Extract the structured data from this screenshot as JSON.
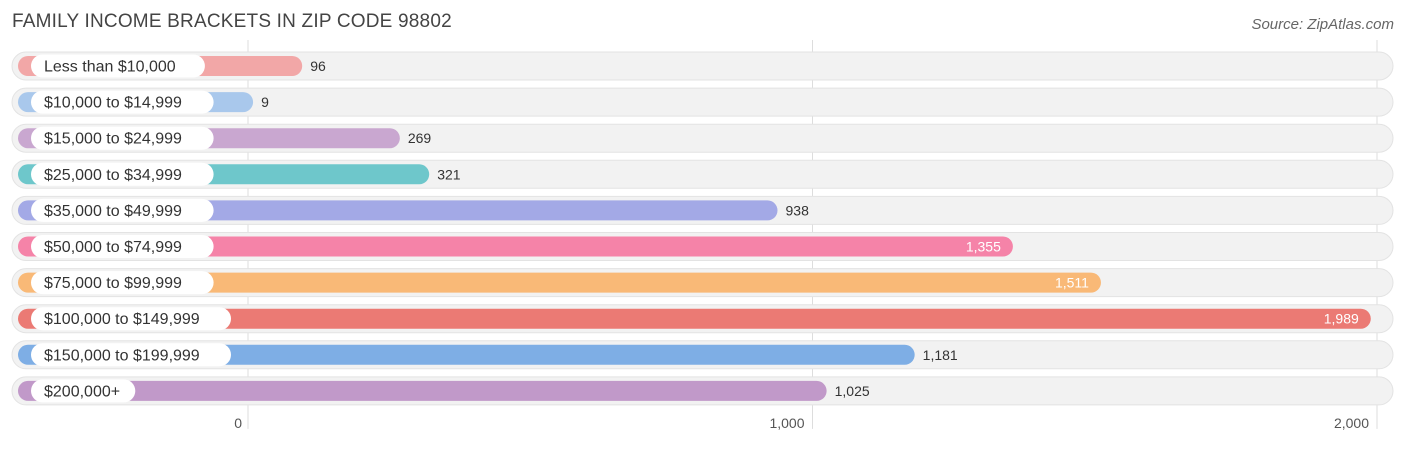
{
  "header": {
    "title": "FAMILY INCOME BRACKETS IN ZIP CODE 98802",
    "source": "Source: ZipAtlas.com"
  },
  "chart_data": {
    "type": "bar",
    "orientation": "horizontal",
    "title": "FAMILY INCOME BRACKETS IN ZIP CODE 98802",
    "categories": [
      "Less than $10,000",
      "$10,000 to $14,999",
      "$15,000 to $24,999",
      "$25,000 to $34,999",
      "$35,000 to $49,999",
      "$50,000 to $74,999",
      "$75,000 to $99,999",
      "$100,000 to $149,999",
      "$150,000 to $199,999",
      "$200,000+"
    ],
    "values": [
      96,
      9,
      269,
      321,
      938,
      1355,
      1511,
      1989,
      1181,
      1025
    ],
    "value_labels": [
      "96",
      "9",
      "269",
      "321",
      "938",
      "1,355",
      "1,511",
      "1,989",
      "1,181",
      "1,025"
    ],
    "colors": [
      "#f2a7a7",
      "#a9c8ec",
      "#c9a7d0",
      "#6ec7cb",
      "#a3a9e6",
      "#f583a8",
      "#f9b977",
      "#eb7a74",
      "#7eaee5",
      "#c199c9"
    ],
    "xlim": [
      0,
      2000
    ],
    "x_ticks": [
      0,
      1000,
      2000
    ],
    "x_tick_labels": [
      "0",
      "1,000",
      "2,000"
    ],
    "grid": true
  }
}
